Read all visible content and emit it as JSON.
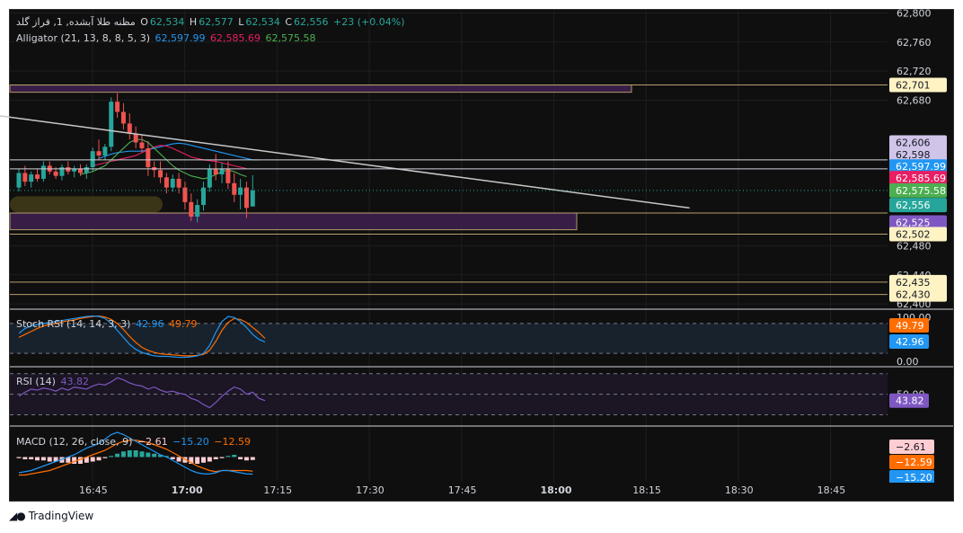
{
  "header": {
    "symbol": "مظنه طلا آبشده, 1, فراز گلد",
    "open_label": "O",
    "open": "62,534",
    "high_label": "H",
    "high": "62,577",
    "low_label": "L",
    "low": "62,534",
    "close_label": "C",
    "close": "62,556",
    "change": "+23 (+0.04%)"
  },
  "alligator": {
    "label": "Alligator (21, 13, 8, 8, 5, 3)",
    "jaw": "62,597.99",
    "teeth": "62,585.69",
    "lips": "62,575.58"
  },
  "stoch": {
    "label": "Stoch RSI (14, 14, 3, 3)",
    "k": "42.96",
    "d": "49.79"
  },
  "rsi": {
    "label": "RSI (14)",
    "value": "43.82"
  },
  "macd": {
    "label": "MACD (12, 26, close, 9)",
    "hist": "−2.61",
    "macd": "−15.20",
    "signal": "−12.59"
  },
  "colors": {
    "up": "#26a69a",
    "down": "#ef5350",
    "jaw": "#2196f3",
    "teeth": "#e91e63",
    "lips": "#4caf50",
    "grid": "#1e1e1e",
    "axis_text": "#d1d4dc",
    "stoch_k": "#2196f3",
    "stoch_d": "#ff6d00",
    "rsi": "#7e57c2"
  },
  "footer": {
    "brand": "TradingView",
    "logo_icon": "tradingview-logo-icon"
  },
  "chart_data": {
    "type": "candlestick",
    "x_ticks": [
      "16:45",
      "17:00",
      "17:15",
      "17:30",
      "17:45",
      "18:00",
      "18:15",
      "18:30",
      "18:45"
    ],
    "bold_x_ticks": [
      "17:00",
      "18:00"
    ],
    "y_ticks": [
      "62,800",
      "62,760",
      "62,720",
      "62,680",
      "62,480",
      "62,440",
      "62,400"
    ],
    "ylim": [
      62394,
      62803
    ],
    "grid": true,
    "candles": [
      [
        62560,
        62585,
        62555,
        62580
      ],
      [
        62580,
        62590,
        62562,
        62568
      ],
      [
        62568,
        62582,
        62560,
        62578
      ],
      [
        62578,
        62586,
        62568,
        62572
      ],
      [
        62572,
        62596,
        62568,
        62590
      ],
      [
        62590,
        62596,
        62578,
        62582
      ],
      [
        62582,
        62588,
        62572,
        62576
      ],
      [
        62576,
        62592,
        62570,
        62588
      ],
      [
        62588,
        62596,
        62578,
        62582
      ],
      [
        62582,
        62590,
        62574,
        62586
      ],
      [
        62586,
        62592,
        62576,
        62580
      ],
      [
        62580,
        62592,
        62572,
        62588
      ],
      [
        62588,
        62615,
        62582,
        62610
      ],
      [
        62610,
        62626,
        62598,
        62604
      ],
      [
        62604,
        62620,
        62598,
        62616
      ],
      [
        62616,
        62684,
        62610,
        62678
      ],
      [
        62678,
        62690,
        62656,
        62664
      ],
      [
        62664,
        62676,
        62640,
        62648
      ],
      [
        62648,
        62662,
        62626,
        62634
      ],
      [
        62634,
        62644,
        62614,
        62622
      ],
      [
        62622,
        62632,
        62608,
        62614
      ],
      [
        62614,
        62624,
        62576,
        62588
      ],
      [
        62588,
        62596,
        62574,
        62584
      ],
      [
        62584,
        62596,
        62566,
        62574
      ],
      [
        62574,
        62580,
        62552,
        62560
      ],
      [
        62560,
        62578,
        62554,
        62572
      ],
      [
        62572,
        62580,
        62552,
        62560
      ],
      [
        62560,
        62568,
        62530,
        62540
      ],
      [
        62540,
        62552,
        62514,
        62520
      ],
      [
        62520,
        62544,
        62512,
        62536
      ],
      [
        62536,
        62568,
        62528,
        62560
      ],
      [
        62560,
        62592,
        62554,
        62586
      ],
      [
        62586,
        62606,
        62570,
        62578
      ],
      [
        62578,
        62594,
        62566,
        62586
      ],
      [
        62586,
        62596,
        62558,
        62566
      ],
      [
        62566,
        62580,
        62540,
        62550
      ],
      [
        62550,
        62572,
        62530,
        62560
      ],
      [
        62560,
        62568,
        62518,
        62532
      ],
      [
        62534,
        62577,
        62534,
        62556
      ]
    ],
    "alligator_jaw": [
      62600,
      62603,
      62606,
      62608,
      62609,
      62610,
      62610,
      62610,
      62612,
      62614,
      62616,
      62618,
      62620,
      62621,
      62620,
      62618,
      62616,
      62614,
      62612,
      62610,
      62608,
      62606,
      62604,
      62602,
      62600,
      62598,
      62598
    ],
    "alligator_teeth": [
      62590,
      62592,
      62594,
      62596,
      62598,
      62600,
      62602,
      62604,
      62608,
      62612,
      62616,
      62618,
      62617,
      62614,
      62610,
      62606,
      62602,
      62600,
      62598,
      62597,
      62596,
      62594,
      62592,
      62590,
      62588,
      62586
    ],
    "alligator_lips": [
      62578,
      62580,
      62582,
      62586,
      62590,
      62598,
      62606,
      62614,
      62622,
      62626,
      62626,
      62622,
      62614,
      62606,
      62598,
      62590,
      62584,
      62580,
      62576,
      62574,
      62572,
      62574,
      62578,
      62582,
      62584,
      62582,
      62578,
      62575
    ],
    "trendline": {
      "from": [
        -7,
        62663
      ],
      "to": [
        109,
        62532
      ]
    },
    "zones": [
      {
        "label": "62,701",
        "upper": 62701,
        "lower": 62691,
        "fill": "#3b1f4a",
        "border": "#b8a06a"
      },
      {
        "label": "62,525",
        "upper": 62525,
        "lower": 62502,
        "fill": "#3b1f4a",
        "border": "#b8a06a"
      }
    ],
    "price_tags": [
      {
        "label": "62,701",
        "bg": "#fff3c4",
        "fg": "#131722",
        "y": 62701
      },
      {
        "label": "62,606",
        "bg": "#d1c4e9",
        "fg": "#131722",
        "y": 62622
      },
      {
        "label": "62,598",
        "bg": "#d1c4e9",
        "fg": "#131722",
        "y": 62605
      },
      {
        "label": "62,597.99",
        "bg": "#2196f3",
        "fg": "#ffffff",
        "y": 62589
      },
      {
        "label": "62,585.69",
        "bg": "#e91e63",
        "fg": "#ffffff",
        "y": 62573
      },
      {
        "label": "62,575.58",
        "bg": "#4caf50",
        "fg": "#ffffff",
        "y": 62556
      },
      {
        "label": "62,556",
        "bg": "#26a69a",
        "fg": "#ffffff",
        "y": 62536
      },
      {
        "label": "62,525",
        "bg": "#7e57c2",
        "fg": "#ffffff",
        "y": 62512
      },
      {
        "label": "62,502",
        "bg": "#fff3c4",
        "fg": "#131722",
        "y": 62496
      },
      {
        "label": "62,435",
        "bg": "#fff3c4",
        "fg": "#131722",
        "y": 62430
      },
      {
        "label": "62,430",
        "bg": "#fff3c4",
        "fg": "#131722",
        "y": 62413
      }
    ],
    "stoch_ticks": [
      "100.00",
      "0.00"
    ],
    "stoch_k_series": [
      60,
      70,
      75,
      78,
      80,
      82,
      84,
      86,
      88,
      90,
      92,
      94,
      95,
      94,
      90,
      80,
      66,
      52,
      38,
      28,
      22,
      18,
      15,
      14,
      14,
      13,
      12,
      12,
      13,
      15,
      20,
      36,
      62,
      84,
      94,
      92,
      84,
      72,
      58,
      48,
      43
    ],
    "stoch_d_series": [
      52,
      58,
      64,
      70,
      75,
      78,
      80,
      83,
      85,
      87,
      90,
      92,
      94,
      95,
      93,
      88,
      80,
      68,
      54,
      42,
      32,
      26,
      22,
      19,
      18,
      17,
      16,
      15,
      15,
      16,
      18,
      26,
      44,
      66,
      82,
      90,
      88,
      82,
      72,
      62,
      50
    ],
    "rsi_ticks": [
      "50.00"
    ],
    "rsi_series": [
      48,
      52,
      55,
      54,
      56,
      55,
      53,
      56,
      54,
      57,
      56,
      55,
      58,
      60,
      59,
      62,
      66,
      64,
      61,
      59,
      58,
      55,
      57,
      54,
      52,
      53,
      51,
      50,
      46,
      44,
      40,
      37,
      42,
      48,
      53,
      57,
      55,
      50,
      52,
      46,
      43.82
    ],
    "macd_hist": [
      -1,
      -2,
      -2,
      -3,
      -3,
      -4,
      -4,
      -5,
      -5,
      -6,
      -6,
      -5,
      -4,
      -3,
      -1,
      1,
      3,
      5,
      6,
      6,
      5,
      4,
      3,
      2,
      1,
      -2,
      -4,
      -5,
      -6,
      -6,
      -5,
      -4,
      -2,
      -1,
      1,
      2,
      -2,
      -3,
      -2.61
    ],
    "macd_line": [
      -14,
      -13,
      -12,
      -10,
      -8,
      -6,
      -4,
      -2,
      0,
      2,
      5,
      8,
      10,
      12,
      16,
      20,
      22,
      20,
      17,
      14,
      11,
      8,
      5,
      2,
      0,
      -3,
      -6,
      -9,
      -12,
      -14,
      -15,
      -15,
      -14,
      -12,
      -12,
      -13,
      -14,
      -15,
      -15.2
    ],
    "signal_line": [
      -16,
      -16,
      -15,
      -14,
      -13,
      -12,
      -10,
      -8,
      -6,
      -4,
      -2,
      0,
      2,
      4,
      6,
      9,
      12,
      14,
      15,
      15,
      14,
      13,
      11,
      9,
      7,
      4,
      1,
      -2,
      -5,
      -8,
      -10,
      -12,
      -13,
      -12,
      -12,
      -12,
      -12,
      -12,
      -12.59
    ]
  }
}
